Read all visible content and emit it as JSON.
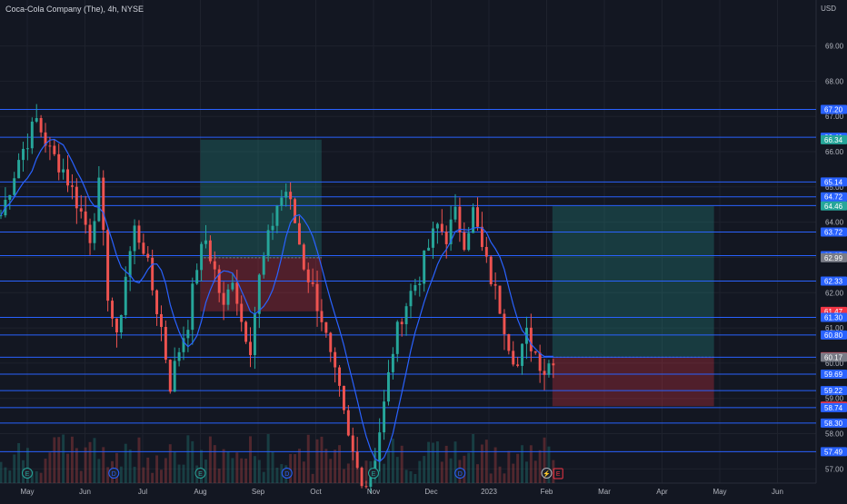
{
  "header": {
    "symbol_title": "Coca-Cola Company (The), 4h, NYSE",
    "currency": "USD"
  },
  "colors": {
    "background": "#131722",
    "grid": "#1e222d",
    "up": "#26a69a",
    "down": "#ef5350",
    "ma": "#2962ff",
    "hline": "#2962ff",
    "label_blue": "#2962ff",
    "label_green": "#26a69a",
    "label_red": "#f23645",
    "label_gray": "#787b86",
    "zone_profit": "#26a69a",
    "zone_loss": "#f23645",
    "text": "#b2b5be"
  },
  "chart_data": {
    "type": "candlestick",
    "title": "Coca-Cola Company (The), 4h, NYSE",
    "currency": "USD",
    "ylim": [
      56.7,
      70.2
    ],
    "x_ticks": [
      "May",
      "Jun",
      "Jul",
      "Aug",
      "Sep",
      "Oct",
      "Nov",
      "Dec",
      "2023",
      "Feb",
      "Mar",
      "Apr",
      "May",
      "Jun"
    ],
    "y_ticks": [
      57.0,
      58.0,
      59.0,
      60.0,
      61.0,
      62.0,
      63.0,
      64.0,
      65.0,
      66.0,
      67.0,
      68.0,
      69.0
    ],
    "price_path": [
      [
        0,
        64.2
      ],
      [
        4,
        65.8
      ],
      [
        8,
        66.9
      ],
      [
        11,
        66.0
      ],
      [
        14,
        65.5
      ],
      [
        17,
        64.6
      ],
      [
        20,
        63.6
      ],
      [
        22,
        65.0
      ],
      [
        24,
        62.0
      ],
      [
        26,
        60.6
      ],
      [
        28,
        62.5
      ],
      [
        30,
        63.8
      ],
      [
        32,
        63.3
      ],
      [
        34,
        62.1
      ],
      [
        36,
        61.0
      ],
      [
        38,
        59.4
      ],
      [
        40,
        60.4
      ],
      [
        42,
        61.2
      ],
      [
        44,
        62.8
      ],
      [
        46,
        63.5
      ],
      [
        48,
        62.6
      ],
      [
        50,
        61.5
      ],
      [
        52,
        62.5
      ],
      [
        54,
        61.2
      ],
      [
        56,
        60.5
      ],
      [
        58,
        62.4
      ],
      [
        60,
        63.5
      ],
      [
        62,
        64.5
      ],
      [
        64,
        64.9
      ],
      [
        66,
        64.0
      ],
      [
        68,
        62.8
      ],
      [
        70,
        62.1
      ],
      [
        72,
        61.3
      ],
      [
        74,
        60.1
      ],
      [
        76,
        59.1
      ],
      [
        78,
        57.8
      ],
      [
        80,
        57.0
      ],
      [
        82,
        56.6
      ],
      [
        84,
        57.4
      ],
      [
        86,
        58.8
      ],
      [
        88,
        60.4
      ],
      [
        90,
        61.4
      ],
      [
        92,
        62.0
      ],
      [
        94,
        62.5
      ],
      [
        96,
        63.3
      ],
      [
        98,
        63.9
      ],
      [
        100,
        63.6
      ],
      [
        102,
        64.2
      ],
      [
        104,
        63.5
      ],
      [
        106,
        64.3
      ],
      [
        108,
        63.2
      ],
      [
        110,
        62.4
      ],
      [
        112,
        61.6
      ],
      [
        114,
        60.6
      ],
      [
        116,
        59.9
      ],
      [
        118,
        60.8
      ],
      [
        120,
        60.3
      ],
      [
        122,
        59.8
      ],
      [
        124,
        60.2
      ]
    ],
    "series": [
      {
        "name": "",
        "type": "moving-average"
      }
    ],
    "horizontal_lines": [
      67.2,
      66.41,
      65.14,
      64.72,
      64.47,
      63.72,
      63.05,
      62.33,
      61.3,
      60.8,
      60.17,
      59.69,
      59.22,
      58.74,
      58.3,
      57.49
    ],
    "price_labels": [
      {
        "value": 67.2,
        "text": "67.20",
        "kind": "blue"
      },
      {
        "value": 66.41,
        "text": "66.41",
        "kind": "blue"
      },
      {
        "value": 66.34,
        "text": "66.34",
        "kind": "green"
      },
      {
        "value": 65.14,
        "text": "65.14",
        "kind": "blue"
      },
      {
        "value": 64.72,
        "text": "64.72",
        "kind": "blue"
      },
      {
        "value": 64.47,
        "text": "64.47",
        "kind": "blue"
      },
      {
        "value": 64.46,
        "text": "64.46",
        "kind": "green"
      },
      {
        "value": 63.72,
        "text": "63.72",
        "kind": "blue"
      },
      {
        "value": 63.05,
        "text": "63.05",
        "kind": "blue"
      },
      {
        "value": 62.99,
        "text": "62.99",
        "kind": "gray"
      },
      {
        "value": 62.33,
        "text": "62.33",
        "kind": "blue"
      },
      {
        "value": 61.47,
        "text": "61.47",
        "kind": "red"
      },
      {
        "value": 61.3,
        "text": "61.30",
        "kind": "blue"
      },
      {
        "value": 60.8,
        "text": "60.80",
        "kind": "blue"
      },
      {
        "value": 60.18,
        "text": "60.18",
        "kind": "red"
      },
      {
        "value": 60.17,
        "text": "60.17",
        "kind": "gray"
      },
      {
        "value": 59.69,
        "text": "59.69",
        "kind": "blue"
      },
      {
        "value": 59.22,
        "text": "59.22",
        "kind": "blue"
      },
      {
        "value": 58.78,
        "text": "58.78",
        "kind": "red"
      },
      {
        "value": 58.74,
        "text": "58.74",
        "kind": "blue"
      },
      {
        "value": 58.3,
        "text": "58.30",
        "kind": "blue"
      },
      {
        "value": 57.49,
        "text": "57.49",
        "kind": "blue"
      }
    ],
    "positions": [
      {
        "name": "long-position-aug",
        "start_month": 3.0,
        "end_month": 5.1,
        "entry": 62.99,
        "target": 66.34,
        "stop": 61.47
      },
      {
        "name": "long-position-feb",
        "start_month": 9.1,
        "end_month": 11.9,
        "entry": 60.17,
        "target": 64.46,
        "stop": 58.78
      }
    ],
    "event_markers": [
      {
        "month": 0.0,
        "symbol": "E",
        "kind": "earnings"
      },
      {
        "month": 1.5,
        "symbol": "D",
        "kind": "dividend"
      },
      {
        "month": 3.0,
        "symbol": "E",
        "kind": "earnings"
      },
      {
        "month": 4.5,
        "symbol": "D",
        "kind": "dividend"
      },
      {
        "month": 6.0,
        "symbol": "E",
        "kind": "earnings"
      },
      {
        "month": 7.5,
        "symbol": "D",
        "kind": "dividend"
      },
      {
        "month": 9.0,
        "symbol": "⚡",
        "kind": "split"
      },
      {
        "month": 9.2,
        "symbol": "E",
        "kind": "earnings-upcoming"
      }
    ]
  }
}
